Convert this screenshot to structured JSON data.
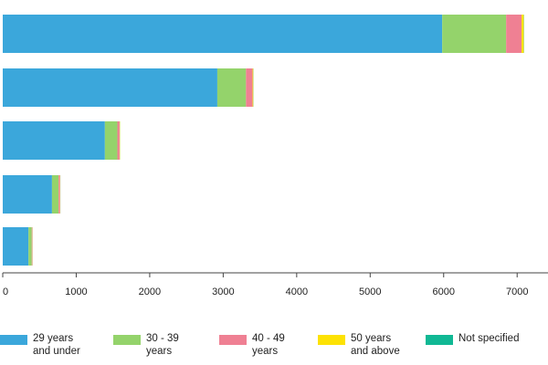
{
  "chart_data": {
    "type": "bar",
    "orientation": "horizontal",
    "stacked": true,
    "title": "",
    "xlabel": "",
    "ylabel": "",
    "xlim": [
      0,
      7400
    ],
    "x_ticks": [
      0,
      1000,
      2000,
      3000,
      4000,
      5000,
      6000,
      7000
    ],
    "x_tick_labels": [
      "0",
      "1000",
      "2000",
      "3000",
      "4000",
      "5000",
      "6000",
      "7000"
    ],
    "categories": [
      "",
      "",
      "",
      "",
      ""
    ],
    "legend_position": "bottom",
    "grid": false,
    "series": [
      {
        "name": "29 years\nand under",
        "color": "#3ba7db",
        "values": [
          5980,
          2920,
          1390,
          670,
          350
        ]
      },
      {
        "name": "30 - 39\nyears",
        "color": "#94d36b",
        "values": [
          870,
          390,
          170,
          90,
          45
        ]
      },
      {
        "name": "40 - 49\nyears",
        "color": "#ef8093",
        "values": [
          210,
          90,
          30,
          20,
          8
        ]
      },
      {
        "name": "50 years\nand above",
        "color": "#fde204",
        "values": [
          30,
          10,
          5,
          3,
          2
        ]
      },
      {
        "name": "Not specified",
        "color": "#10b894",
        "values": [
          3,
          2,
          1,
          1,
          1
        ]
      }
    ]
  }
}
